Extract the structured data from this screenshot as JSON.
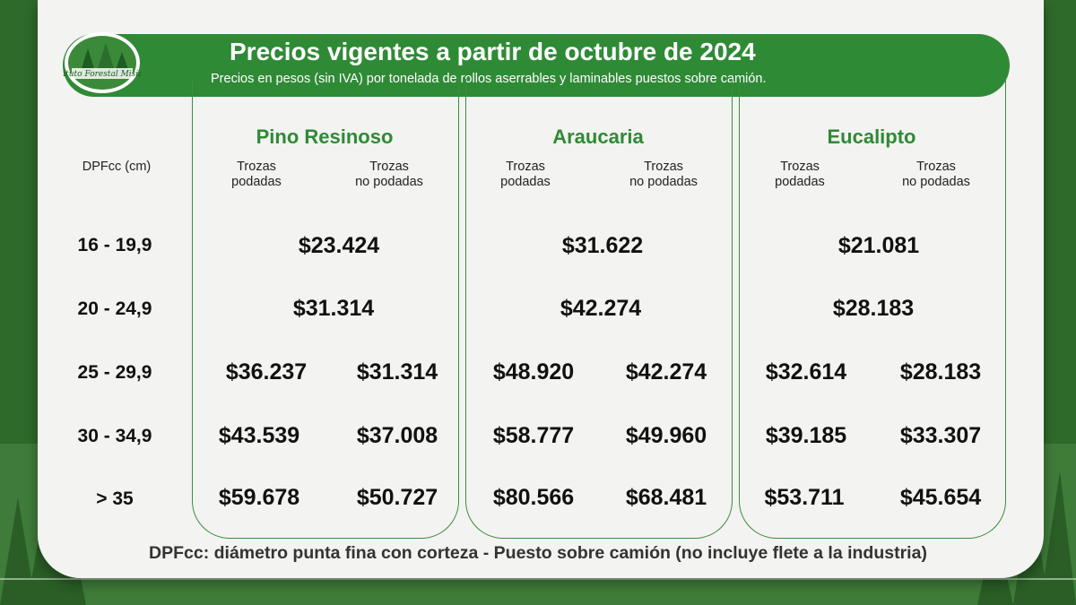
{
  "header": {
    "title": "Precios vigentes a partir de octubre de 2024",
    "subtitle": "Precios en pesos (sin IVA) por tonelada de rollos aserrables y laminables puestos sobre camión.",
    "logo_text": "Instituto Forestal Misiones"
  },
  "table": {
    "row_header": "DPFcc (cm)",
    "subheads": {
      "pruned": "Trozas\npodadas",
      "unpruned": "Trozas\nno podadas"
    },
    "species": [
      "Pino Resinoso",
      "Araucaria",
      "Eucalipto"
    ],
    "rows": [
      {
        "label": "16 - 19,9",
        "prices": [
          "$23.424",
          "$31.622",
          "$21.081"
        ]
      },
      {
        "label": "20 - 24,9",
        "prices": [
          "$31.314",
          "$42.274",
          "$28.183"
        ]
      },
      {
        "label": "25 - 29,9",
        "prices": [
          [
            "$36.237",
            "$31.314"
          ],
          [
            "$48.920",
            "$42.274"
          ],
          [
            "$32.614",
            "$28.183"
          ]
        ]
      },
      {
        "label": "30 - 34,9",
        "prices": [
          [
            "$43.539",
            "$37.008"
          ],
          [
            "$58.777",
            "$49.960"
          ],
          [
            "$39.185",
            "$33.307"
          ]
        ]
      },
      {
        "label": "> 35",
        "prices": [
          [
            "$59.678",
            "$50.727"
          ],
          [
            "$80.566",
            "$68.481"
          ],
          [
            "$53.711",
            "$45.654"
          ]
        ]
      }
    ]
  },
  "footnote": "DPFcc: diámetro punta fina con corteza  -  Puesto sobre camión (no incluye flete a la industria)",
  "colors": {
    "brand_green": "#2f8a36",
    "card_bg": "#f3f3f1",
    "forest": "#2e6a2a"
  },
  "icons": [
    "forest-logo-icon",
    "tree-silhouette-icon"
  ]
}
